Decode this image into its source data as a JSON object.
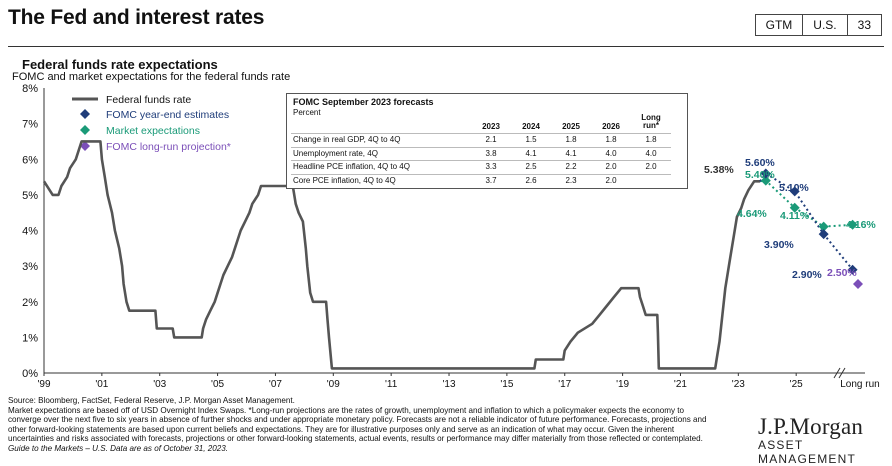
{
  "page": {
    "title": "The Fed and interest rates",
    "tags": [
      "GTM",
      "U.S.",
      "33"
    ]
  },
  "chart_data": {
    "type": "line",
    "title": "Federal funds rate expectations",
    "subtitle": "FOMC and market expectations for the federal funds rate",
    "y_ticks": [
      "0%",
      "1%",
      "2%",
      "3%",
      "4%",
      "5%",
      "6%",
      "7%",
      "8%"
    ],
    "ylim": [
      0,
      8
    ],
    "x_ticks": [
      "'99",
      "'01",
      "'03",
      "'05",
      "'07",
      "'09",
      "'11",
      "'13",
      "'15",
      "'17",
      "'19",
      "'21",
      "'23",
      "'25",
      "Long run"
    ],
    "colors": {
      "fed": "#555555",
      "fomc": "#1f3d7a",
      "market": "#1a9a78",
      "longrun": "#7b4fb8"
    },
    "legend": [
      {
        "key": "fed",
        "label": "Federal funds rate"
      },
      {
        "key": "fomc",
        "label": "FOMC  year-end estimates"
      },
      {
        "key": "market",
        "label": "Market expectations"
      },
      {
        "key": "longrun",
        "label": "FOMC  long-run  projection*"
      }
    ],
    "fed_funds_rate": [
      [
        1999.0,
        5.38
      ],
      [
        1999.3,
        5.0
      ],
      [
        1999.5,
        5.0
      ],
      [
        1999.6,
        5.25
      ],
      [
        1999.8,
        5.5
      ],
      [
        1999.9,
        5.75
      ],
      [
        2000.1,
        6.0
      ],
      [
        2000.3,
        6.5
      ],
      [
        2000.6,
        6.5
      ],
      [
        2000.95,
        6.5
      ],
      [
        2001.0,
        6.0
      ],
      [
        2001.1,
        5.5
      ],
      [
        2001.2,
        5.0
      ],
      [
        2001.35,
        4.5
      ],
      [
        2001.45,
        4.0
      ],
      [
        2001.6,
        3.5
      ],
      [
        2001.7,
        3.0
      ],
      [
        2001.75,
        2.5
      ],
      [
        2001.85,
        2.0
      ],
      [
        2001.95,
        1.75
      ],
      [
        2002.85,
        1.75
      ],
      [
        2002.9,
        1.25
      ],
      [
        2003.45,
        1.25
      ],
      [
        2003.5,
        1.0
      ],
      [
        2004.45,
        1.0
      ],
      [
        2004.5,
        1.25
      ],
      [
        2004.6,
        1.5
      ],
      [
        2004.75,
        1.75
      ],
      [
        2004.9,
        2.0
      ],
      [
        2005.0,
        2.25
      ],
      [
        2005.1,
        2.5
      ],
      [
        2005.2,
        2.75
      ],
      [
        2005.35,
        3.0
      ],
      [
        2005.5,
        3.25
      ],
      [
        2005.6,
        3.5
      ],
      [
        2005.7,
        3.75
      ],
      [
        2005.8,
        4.0
      ],
      [
        2005.95,
        4.25
      ],
      [
        2006.1,
        4.5
      ],
      [
        2006.2,
        4.75
      ],
      [
        2006.4,
        5.0
      ],
      [
        2006.5,
        5.25
      ],
      [
        2007.6,
        5.25
      ],
      [
        2007.7,
        4.75
      ],
      [
        2007.8,
        4.5
      ],
      [
        2007.95,
        4.25
      ],
      [
        2008.05,
        3.5
      ],
      [
        2008.1,
        3.0
      ],
      [
        2008.2,
        2.25
      ],
      [
        2008.3,
        2.0
      ],
      [
        2008.75,
        2.0
      ],
      [
        2008.8,
        1.5
      ],
      [
        2008.85,
        1.0
      ],
      [
        2008.95,
        0.13
      ],
      [
        2015.95,
        0.13
      ],
      [
        2016.0,
        0.38
      ],
      [
        2016.95,
        0.38
      ],
      [
        2017.0,
        0.63
      ],
      [
        2017.2,
        0.88
      ],
      [
        2017.45,
        1.13
      ],
      [
        2017.95,
        1.38
      ],
      [
        2018.2,
        1.63
      ],
      [
        2018.45,
        1.88
      ],
      [
        2018.7,
        2.13
      ],
      [
        2018.95,
        2.38
      ],
      [
        2019.55,
        2.38
      ],
      [
        2019.6,
        2.13
      ],
      [
        2019.7,
        1.88
      ],
      [
        2019.8,
        1.63
      ],
      [
        2020.2,
        1.63
      ],
      [
        2020.22,
        1.13
      ],
      [
        2020.25,
        0.13
      ],
      [
        2022.2,
        0.13
      ],
      [
        2022.25,
        0.38
      ],
      [
        2022.35,
        0.88
      ],
      [
        2022.45,
        1.63
      ],
      [
        2022.55,
        2.38
      ],
      [
        2022.7,
        3.13
      ],
      [
        2022.85,
        3.88
      ],
      [
        2022.95,
        4.38
      ],
      [
        2023.1,
        4.63
      ],
      [
        2023.2,
        4.88
      ],
      [
        2023.35,
        5.13
      ],
      [
        2023.55,
        5.38
      ],
      [
        2023.75,
        5.38
      ]
    ],
    "fomc_estimates": [
      [
        2023.95,
        5.6
      ],
      [
        2024.95,
        5.1
      ],
      [
        2025.95,
        3.9
      ],
      [
        2026.95,
        2.9
      ]
    ],
    "market_expectations": [
      [
        2023.75,
        5.38
      ],
      [
        2023.95,
        5.4
      ],
      [
        2024.95,
        4.64
      ],
      [
        2025.95,
        4.11
      ],
      [
        2026.95,
        4.16
      ]
    ],
    "long_run": 2.5,
    "annotations": {
      "current": "5.38%",
      "fomc_2023": "5.60%",
      "market_2023": "5.40%",
      "fomc_2024": "5.10%",
      "market_2024": "4.64%",
      "market_2025": "4.11%",
      "fomc_2025": "3.90%",
      "market_2026": "4.16%",
      "fomc_2026": "2.90%",
      "long_run": "2.50%"
    }
  },
  "forecast_table": {
    "title": "FOMC September 2023 forecasts",
    "subtitle": "Percent",
    "columns": [
      "2023",
      "2024",
      "2025",
      "2026",
      "Long run*"
    ],
    "rows": [
      {
        "label": "Change in real GDP, 4Q to 4Q",
        "values": [
          "2.1",
          "1.5",
          "1.8",
          "1.8",
          "1.8"
        ]
      },
      {
        "label": "Unemployment rate, 4Q",
        "values": [
          "3.8",
          "4.1",
          "4.1",
          "4.0",
          "4.0"
        ]
      },
      {
        "label": "Headline PCE inflation, 4Q to 4Q",
        "values": [
          "3.3",
          "2.5",
          "2.2",
          "2.0",
          "2.0"
        ]
      },
      {
        "label": "Core PCE inflation, 4Q to 4Q",
        "values": [
          "3.7",
          "2.6",
          "2.3",
          "2.0",
          ""
        ]
      }
    ]
  },
  "footnotes": [
    "Source: Bloomberg, FactSet, Federal Reserve, J.P. Morgan Asset Management.",
    "Market expectations are based off of USD Overnight Index Swaps. *Long-run projections are the rates of growth, unemployment and inflation to which a policymaker expects the economy to converge over the next five to six years in absence of further shocks and under appropriate monetary policy. Forecasts are not a reliable indicator of future performance. Forecasts, projections and other forward-looking statements are based upon current beliefs and expectations. They are for illustrative purposes only and serve as an indication of what may occur. Given the inherent uncertainties and risks associated with forecasts, projections or other forward-looking statements, actual events, results or performance may differ materially from those reflected or contemplated.",
    "Guide to the Markets – U.S. Data are as of October 31, 2023."
  ],
  "logo": {
    "name": "J.P.Morgan",
    "tagline": "ASSET MANAGEMENT"
  }
}
